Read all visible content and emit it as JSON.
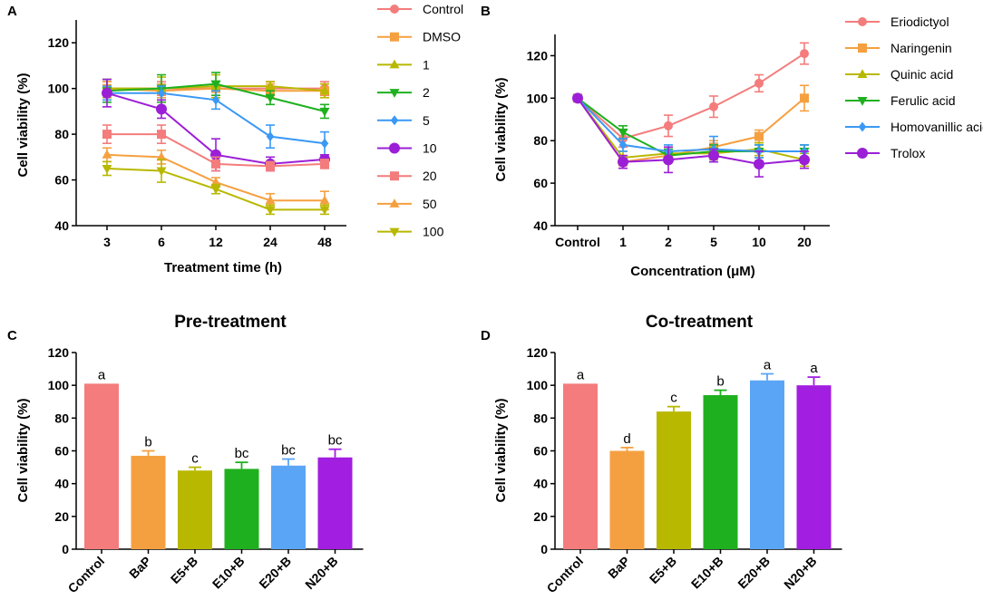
{
  "chart_data": [
    {
      "panel": "A",
      "type": "line",
      "title": "",
      "xlabel": "Treatment time (h)",
      "ylabel": "Cell viability (%)",
      "categories": [
        "3",
        "6",
        "12",
        "24",
        "48"
      ],
      "ylim": [
        40,
        130
      ],
      "yticks": [
        40,
        60,
        80,
        100,
        120
      ],
      "legend_position": "right",
      "series": [
        {
          "name": "Control",
          "color": "#f47c7c",
          "marker": "circle",
          "values": [
            100,
            100,
            100,
            100,
            100
          ],
          "errors": [
            3,
            3,
            3,
            3,
            3
          ]
        },
        {
          "name": "DMSO",
          "color": "#f5a040",
          "marker": "square",
          "values": [
            100,
            99,
            100,
            99,
            99
          ],
          "errors": [
            3,
            3,
            3,
            3,
            3
          ]
        },
        {
          "name": "1",
          "color": "#b8b800",
          "marker": "triangle-up",
          "values": [
            100,
            100,
            101,
            101,
            99
          ],
          "errors": [
            4,
            5,
            5,
            2,
            3
          ]
        },
        {
          "name": "2",
          "color": "#1fb01f",
          "marker": "triangle-down",
          "values": [
            99,
            100,
            102,
            96,
            90
          ],
          "errors": [
            5,
            6,
            5,
            3,
            3
          ]
        },
        {
          "name": "5",
          "color": "#3a99f5",
          "marker": "diamond",
          "values": [
            98,
            98,
            95,
            79,
            76
          ],
          "errors": [
            3,
            3,
            4,
            5,
            5
          ]
        },
        {
          "name": "10",
          "color": "#9b1fd6",
          "marker": "circle",
          "values": [
            98,
            91,
            71,
            67,
            69
          ],
          "errors": [
            6,
            4,
            7,
            3,
            2
          ]
        },
        {
          "name": "20",
          "color": "#f47c7c",
          "marker": "square",
          "values": [
            80,
            80,
            67,
            66,
            67
          ],
          "errors": [
            4,
            4,
            3,
            2,
            2
          ]
        },
        {
          "name": "50",
          "color": "#f5a040",
          "marker": "triangle-up",
          "values": [
            71,
            70,
            59,
            51,
            51
          ],
          "errors": [
            3,
            3,
            2,
            3,
            4
          ]
        },
        {
          "name": "100",
          "color": "#b8b800",
          "marker": "triangle-down",
          "values": [
            65,
            64,
            56,
            47,
            47
          ],
          "errors": [
            3,
            5,
            2,
            2,
            2
          ]
        }
      ]
    },
    {
      "panel": "B",
      "type": "line",
      "title": "",
      "xlabel": "Concentration (μM)",
      "ylabel": "Cell viability (%)",
      "categories": [
        "Control",
        "1",
        "2",
        "5",
        "10",
        "20"
      ],
      "ylim": [
        40,
        130
      ],
      "yticks": [
        40,
        60,
        80,
        100,
        120
      ],
      "legend_position": "right",
      "series": [
        {
          "name": "Eriodictyol",
          "color": "#f47c7c",
          "marker": "circle",
          "values": [
            100,
            81,
            87,
            96,
            107,
            121
          ],
          "errors": [
            0,
            4,
            5,
            5,
            4,
            5
          ]
        },
        {
          "name": "Naringenin",
          "color": "#f5a040",
          "marker": "square",
          "values": [
            100,
            70,
            73,
            77,
            82,
            100
          ],
          "errors": [
            0,
            3,
            3,
            3,
            3,
            6
          ]
        },
        {
          "name": "Quinic acid",
          "color": "#b8b800",
          "marker": "triangle-up",
          "values": [
            100,
            72,
            74,
            74,
            76,
            71
          ],
          "errors": [
            0,
            3,
            3,
            3,
            3,
            3
          ]
        },
        {
          "name": "Ferulic acid",
          "color": "#1fb01f",
          "marker": "triangle-down",
          "values": [
            100,
            84,
            73,
            75,
            75,
            75
          ],
          "errors": [
            0,
            3,
            3,
            3,
            3,
            3
          ]
        },
        {
          "name": "Homovanillic acid",
          "color": "#3a99f5",
          "marker": "diamond",
          "values": [
            100,
            78,
            75,
            76,
            75,
            75
          ],
          "errors": [
            0,
            3,
            3,
            6,
            3,
            3
          ]
        },
        {
          "name": "Trolox",
          "color": "#9b1fd6",
          "marker": "circle",
          "values": [
            100,
            70,
            71,
            73,
            69,
            71
          ],
          "errors": [
            0,
            3,
            6,
            3,
            6,
            4
          ]
        }
      ]
    },
    {
      "panel": "C",
      "type": "bar",
      "title": "Pre-treatment",
      "xlabel": "",
      "ylabel": "Cell viability (%)",
      "categories": [
        "Control",
        "BaP",
        "E5+B",
        "E10+B",
        "E20+B",
        "N20+B"
      ],
      "values": [
        101,
        57,
        48,
        49,
        51,
        56
      ],
      "errors": [
        0,
        3,
        2,
        4,
        4,
        5
      ],
      "significance": [
        "a",
        "b",
        "c",
        "bc",
        "bc",
        "bc"
      ],
      "colors": [
        "#f47c7c",
        "#f5a040",
        "#b8b800",
        "#1fb01f",
        "#5aa5f5",
        "#a21ee0"
      ],
      "ylim": [
        0,
        120
      ],
      "yticks": [
        0,
        20,
        40,
        60,
        80,
        100,
        120
      ]
    },
    {
      "panel": "D",
      "type": "bar",
      "title": "Co-treatment",
      "xlabel": "",
      "ylabel": "Cell viability (%)",
      "categories": [
        "Control",
        "BaP",
        "E5+B",
        "E10+B",
        "E20+B",
        "N20+B"
      ],
      "values": [
        101,
        60,
        84,
        94,
        103,
        100
      ],
      "errors": [
        0,
        2,
        3,
        3,
        4,
        5
      ],
      "significance": [
        "a",
        "d",
        "c",
        "b",
        "a",
        "a"
      ],
      "colors": [
        "#f47c7c",
        "#f5a040",
        "#b8b800",
        "#1fb01f",
        "#5aa5f5",
        "#a21ee0"
      ],
      "ylim": [
        0,
        120
      ],
      "yticks": [
        0,
        20,
        40,
        60,
        80,
        100,
        120
      ]
    }
  ]
}
